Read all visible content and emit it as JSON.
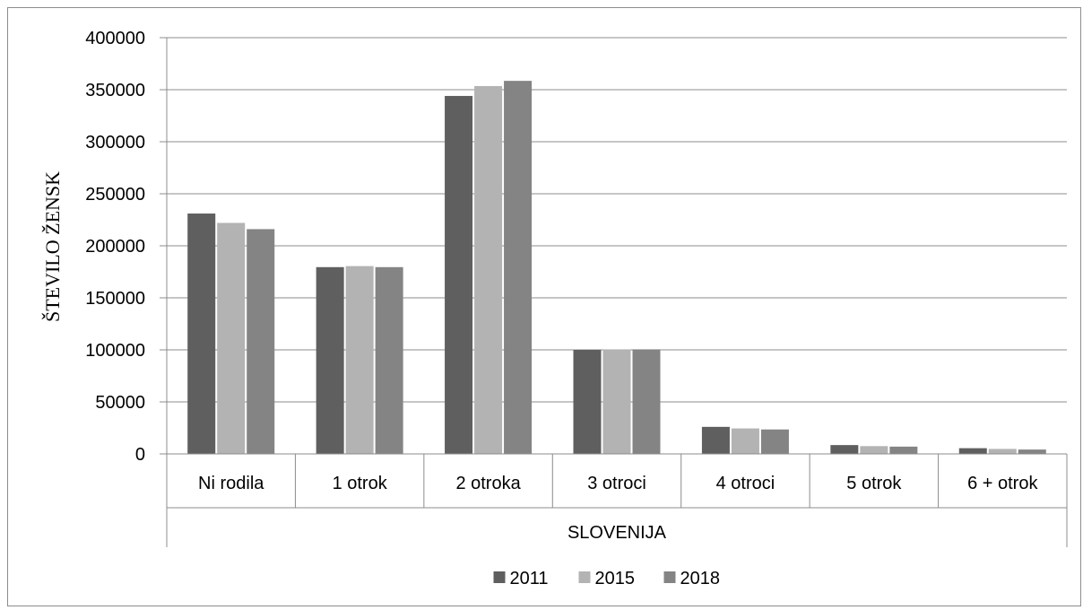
{
  "chart_data": {
    "type": "bar",
    "title": "",
    "ylabel": "ŠTEVILO ŽENSK",
    "xlabel": "",
    "group_label": "SLOVENIJA",
    "categories": [
      "Ni rodila",
      "1 otrok",
      "2 otroka",
      "3 otroci",
      "4 otroci",
      "5 otrok",
      "6 + otrok"
    ],
    "series": [
      {
        "name": "2011",
        "color": "#5f5f5f",
        "values": [
          231000,
          179500,
          344000,
          100000,
          26000,
          8500,
          5500
        ]
      },
      {
        "name": "2015",
        "color": "#b3b3b3",
        "values": [
          222000,
          180500,
          353500,
          100500,
          24500,
          7500,
          4800
        ]
      },
      {
        "name": "2018",
        "color": "#848484",
        "values": [
          216000,
          179500,
          358500,
          100500,
          23500,
          7000,
          4200
        ]
      }
    ],
    "ylim": [
      0,
      400000
    ],
    "yticks": [
      "0",
      "50000",
      "100000",
      "150000",
      "200000",
      "250000",
      "300000",
      "350000",
      "400000"
    ],
    "grid": true,
    "legend_position": "bottom"
  }
}
